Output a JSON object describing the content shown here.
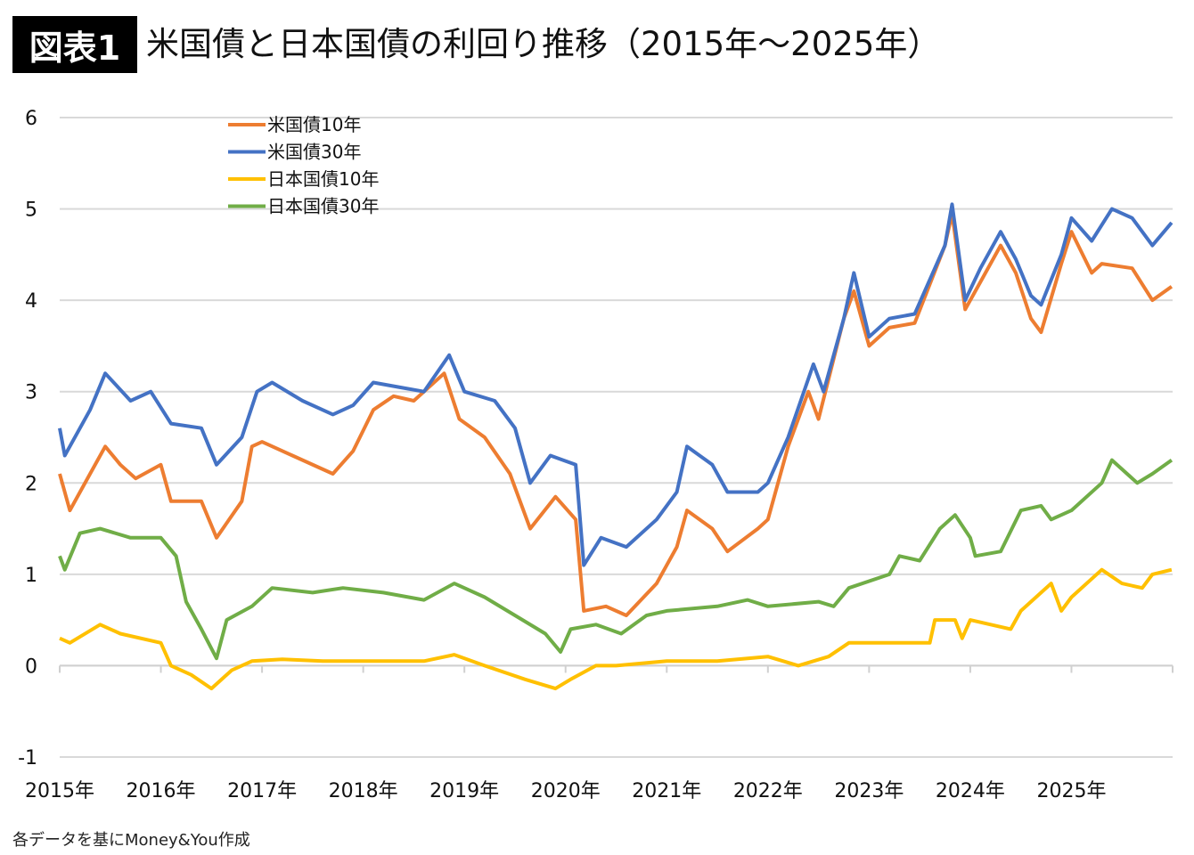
{
  "header": {
    "badge": "図表1",
    "title": "米国債と日本国債の利回り推移（2015年〜2025年）"
  },
  "source": "各データを基にMoney&You作成",
  "chart_data": {
    "type": "line",
    "title": "米国債と日本国債の利回り推移（2015年〜2025年）",
    "xlabel": "",
    "ylabel": "",
    "xlim": [
      2015,
      2026
    ],
    "ylim": [
      -1,
      6
    ],
    "yticks": [
      6,
      5,
      4,
      3,
      2,
      1,
      0,
      -1
    ],
    "xticks": [
      "2015年",
      "2016年",
      "2017年",
      "2018年",
      "2019年",
      "2020年",
      "2021年",
      "2022年",
      "2023年",
      "2024年",
      "2025年"
    ],
    "grid": true,
    "legend_placement": "top-left",
    "series": [
      {
        "name": "米国債10年",
        "color": "#ED7D31",
        "points": [
          [
            2015.0,
            2.1
          ],
          [
            2015.1,
            1.7
          ],
          [
            2015.3,
            2.1
          ],
          [
            2015.45,
            2.4
          ],
          [
            2015.6,
            2.2
          ],
          [
            2015.75,
            2.05
          ],
          [
            2016.0,
            2.2
          ],
          [
            2016.1,
            1.8
          ],
          [
            2016.4,
            1.8
          ],
          [
            2016.55,
            1.4
          ],
          [
            2016.8,
            1.8
          ],
          [
            2016.9,
            2.4
          ],
          [
            2017.0,
            2.45
          ],
          [
            2017.3,
            2.3
          ],
          [
            2017.7,
            2.1
          ],
          [
            2017.9,
            2.35
          ],
          [
            2018.1,
            2.8
          ],
          [
            2018.3,
            2.95
          ],
          [
            2018.5,
            2.9
          ],
          [
            2018.8,
            3.2
          ],
          [
            2018.95,
            2.7
          ],
          [
            2019.2,
            2.5
          ],
          [
            2019.45,
            2.1
          ],
          [
            2019.65,
            1.5
          ],
          [
            2019.9,
            1.85
          ],
          [
            2020.1,
            1.6
          ],
          [
            2020.18,
            0.6
          ],
          [
            2020.4,
            0.65
          ],
          [
            2020.6,
            0.55
          ],
          [
            2020.9,
            0.9
          ],
          [
            2021.1,
            1.3
          ],
          [
            2021.2,
            1.7
          ],
          [
            2021.45,
            1.5
          ],
          [
            2021.6,
            1.25
          ],
          [
            2021.9,
            1.5
          ],
          [
            2022.0,
            1.6
          ],
          [
            2022.2,
            2.4
          ],
          [
            2022.4,
            3.0
          ],
          [
            2022.5,
            2.7
          ],
          [
            2022.75,
            3.8
          ],
          [
            2022.85,
            4.1
          ],
          [
            2023.0,
            3.5
          ],
          [
            2023.2,
            3.7
          ],
          [
            2023.45,
            3.75
          ],
          [
            2023.75,
            4.6
          ],
          [
            2023.82,
            4.95
          ],
          [
            2023.95,
            3.9
          ],
          [
            2024.1,
            4.2
          ],
          [
            2024.3,
            4.6
          ],
          [
            2024.45,
            4.3
          ],
          [
            2024.6,
            3.8
          ],
          [
            2024.7,
            3.65
          ],
          [
            2024.9,
            4.4
          ],
          [
            2025.0,
            4.75
          ],
          [
            2025.2,
            4.3
          ],
          [
            2025.3,
            4.4
          ],
          [
            2025.6,
            4.35
          ],
          [
            2025.8,
            4.0
          ],
          [
            2025.99,
            4.15
          ]
        ]
      },
      {
        "name": "米国債30年",
        "color": "#4472C4",
        "points": [
          [
            2015.0,
            2.6
          ],
          [
            2015.05,
            2.3
          ],
          [
            2015.3,
            2.8
          ],
          [
            2015.45,
            3.2
          ],
          [
            2015.7,
            2.9
          ],
          [
            2015.9,
            3.0
          ],
          [
            2016.1,
            2.65
          ],
          [
            2016.4,
            2.6
          ],
          [
            2016.55,
            2.2
          ],
          [
            2016.8,
            2.5
          ],
          [
            2016.95,
            3.0
          ],
          [
            2017.1,
            3.1
          ],
          [
            2017.4,
            2.9
          ],
          [
            2017.7,
            2.75
          ],
          [
            2017.9,
            2.85
          ],
          [
            2018.1,
            3.1
          ],
          [
            2018.35,
            3.05
          ],
          [
            2018.6,
            3.0
          ],
          [
            2018.85,
            3.4
          ],
          [
            2019.0,
            3.0
          ],
          [
            2019.3,
            2.9
          ],
          [
            2019.5,
            2.6
          ],
          [
            2019.65,
            2.0
          ],
          [
            2019.85,
            2.3
          ],
          [
            2020.1,
            2.2
          ],
          [
            2020.18,
            1.1
          ],
          [
            2020.35,
            1.4
          ],
          [
            2020.6,
            1.3
          ],
          [
            2020.9,
            1.6
          ],
          [
            2021.1,
            1.9
          ],
          [
            2021.2,
            2.4
          ],
          [
            2021.45,
            2.2
          ],
          [
            2021.6,
            1.9
          ],
          [
            2021.9,
            1.9
          ],
          [
            2022.0,
            2.0
          ],
          [
            2022.2,
            2.5
          ],
          [
            2022.45,
            3.3
          ],
          [
            2022.55,
            3.0
          ],
          [
            2022.75,
            3.8
          ],
          [
            2022.85,
            4.3
          ],
          [
            2023.0,
            3.6
          ],
          [
            2023.2,
            3.8
          ],
          [
            2023.45,
            3.85
          ],
          [
            2023.75,
            4.6
          ],
          [
            2023.82,
            5.05
          ],
          [
            2023.95,
            4.0
          ],
          [
            2024.1,
            4.35
          ],
          [
            2024.3,
            4.75
          ],
          [
            2024.45,
            4.45
          ],
          [
            2024.6,
            4.05
          ],
          [
            2024.7,
            3.95
          ],
          [
            2024.9,
            4.5
          ],
          [
            2025.0,
            4.9
          ],
          [
            2025.2,
            4.65
          ],
          [
            2025.4,
            5.0
          ],
          [
            2025.6,
            4.9
          ],
          [
            2025.8,
            4.6
          ],
          [
            2025.99,
            4.85
          ]
        ]
      },
      {
        "name": "日本国債10年",
        "color": "#FFC000",
        "points": [
          [
            2015.0,
            0.3
          ],
          [
            2015.1,
            0.25
          ],
          [
            2015.4,
            0.45
          ],
          [
            2015.6,
            0.35
          ],
          [
            2016.0,
            0.25
          ],
          [
            2016.1,
            0.0
          ],
          [
            2016.3,
            -0.1
          ],
          [
            2016.5,
            -0.25
          ],
          [
            2016.7,
            -0.05
          ],
          [
            2016.9,
            0.05
          ],
          [
            2017.2,
            0.07
          ],
          [
            2017.6,
            0.05
          ],
          [
            2018.0,
            0.05
          ],
          [
            2018.6,
            0.05
          ],
          [
            2018.9,
            0.12
          ],
          [
            2019.2,
            0.0
          ],
          [
            2019.6,
            -0.15
          ],
          [
            2019.9,
            -0.25
          ],
          [
            2020.05,
            -0.15
          ],
          [
            2020.3,
            0.0
          ],
          [
            2020.5,
            0.0
          ],
          [
            2021.0,
            0.05
          ],
          [
            2021.5,
            0.05
          ],
          [
            2022.0,
            0.1
          ],
          [
            2022.3,
            0.0
          ],
          [
            2022.6,
            0.1
          ],
          [
            2022.8,
            0.25
          ],
          [
            2023.2,
            0.25
          ],
          [
            2023.6,
            0.25
          ],
          [
            2023.65,
            0.5
          ],
          [
            2023.85,
            0.5
          ],
          [
            2023.92,
            0.3
          ],
          [
            2024.0,
            0.5
          ],
          [
            2024.4,
            0.4
          ],
          [
            2024.5,
            0.6
          ],
          [
            2024.8,
            0.9
          ],
          [
            2024.9,
            0.6
          ],
          [
            2025.0,
            0.75
          ],
          [
            2025.3,
            1.05
          ],
          [
            2025.5,
            0.9
          ],
          [
            2025.7,
            0.85
          ],
          [
            2025.8,
            1.0
          ],
          [
            2025.99,
            1.05
          ]
        ]
      },
      {
        "name": "日本国債30年",
        "color": "#70AD47",
        "points": [
          [
            2015.0,
            1.2
          ],
          [
            2015.05,
            1.05
          ],
          [
            2015.2,
            1.45
          ],
          [
            2015.4,
            1.5
          ],
          [
            2015.7,
            1.4
          ],
          [
            2016.0,
            1.4
          ],
          [
            2016.15,
            1.2
          ],
          [
            2016.25,
            0.7
          ],
          [
            2016.4,
            0.4
          ],
          [
            2016.55,
            0.08
          ],
          [
            2016.65,
            0.5
          ],
          [
            2016.9,
            0.65
          ],
          [
            2017.1,
            0.85
          ],
          [
            2017.5,
            0.8
          ],
          [
            2017.8,
            0.85
          ],
          [
            2018.2,
            0.8
          ],
          [
            2018.6,
            0.72
          ],
          [
            2018.9,
            0.9
          ],
          [
            2019.2,
            0.75
          ],
          [
            2019.5,
            0.55
          ],
          [
            2019.8,
            0.35
          ],
          [
            2019.95,
            0.15
          ],
          [
            2020.05,
            0.4
          ],
          [
            2020.3,
            0.45
          ],
          [
            2020.55,
            0.35
          ],
          [
            2020.8,
            0.55
          ],
          [
            2021.0,
            0.6
          ],
          [
            2021.5,
            0.65
          ],
          [
            2021.8,
            0.72
          ],
          [
            2022.0,
            0.65
          ],
          [
            2022.5,
            0.7
          ],
          [
            2022.65,
            0.65
          ],
          [
            2022.8,
            0.85
          ],
          [
            2023.2,
            1.0
          ],
          [
            2023.3,
            1.2
          ],
          [
            2023.5,
            1.15
          ],
          [
            2023.7,
            1.5
          ],
          [
            2023.85,
            1.65
          ],
          [
            2024.0,
            1.4
          ],
          [
            2024.05,
            1.2
          ],
          [
            2024.3,
            1.25
          ],
          [
            2024.5,
            1.7
          ],
          [
            2024.7,
            1.75
          ],
          [
            2024.8,
            1.6
          ],
          [
            2025.0,
            1.7
          ],
          [
            2025.3,
            2.0
          ],
          [
            2025.4,
            2.25
          ],
          [
            2025.65,
            2.0
          ],
          [
            2025.8,
            2.1
          ],
          [
            2025.99,
            2.25
          ]
        ]
      }
    ]
  }
}
